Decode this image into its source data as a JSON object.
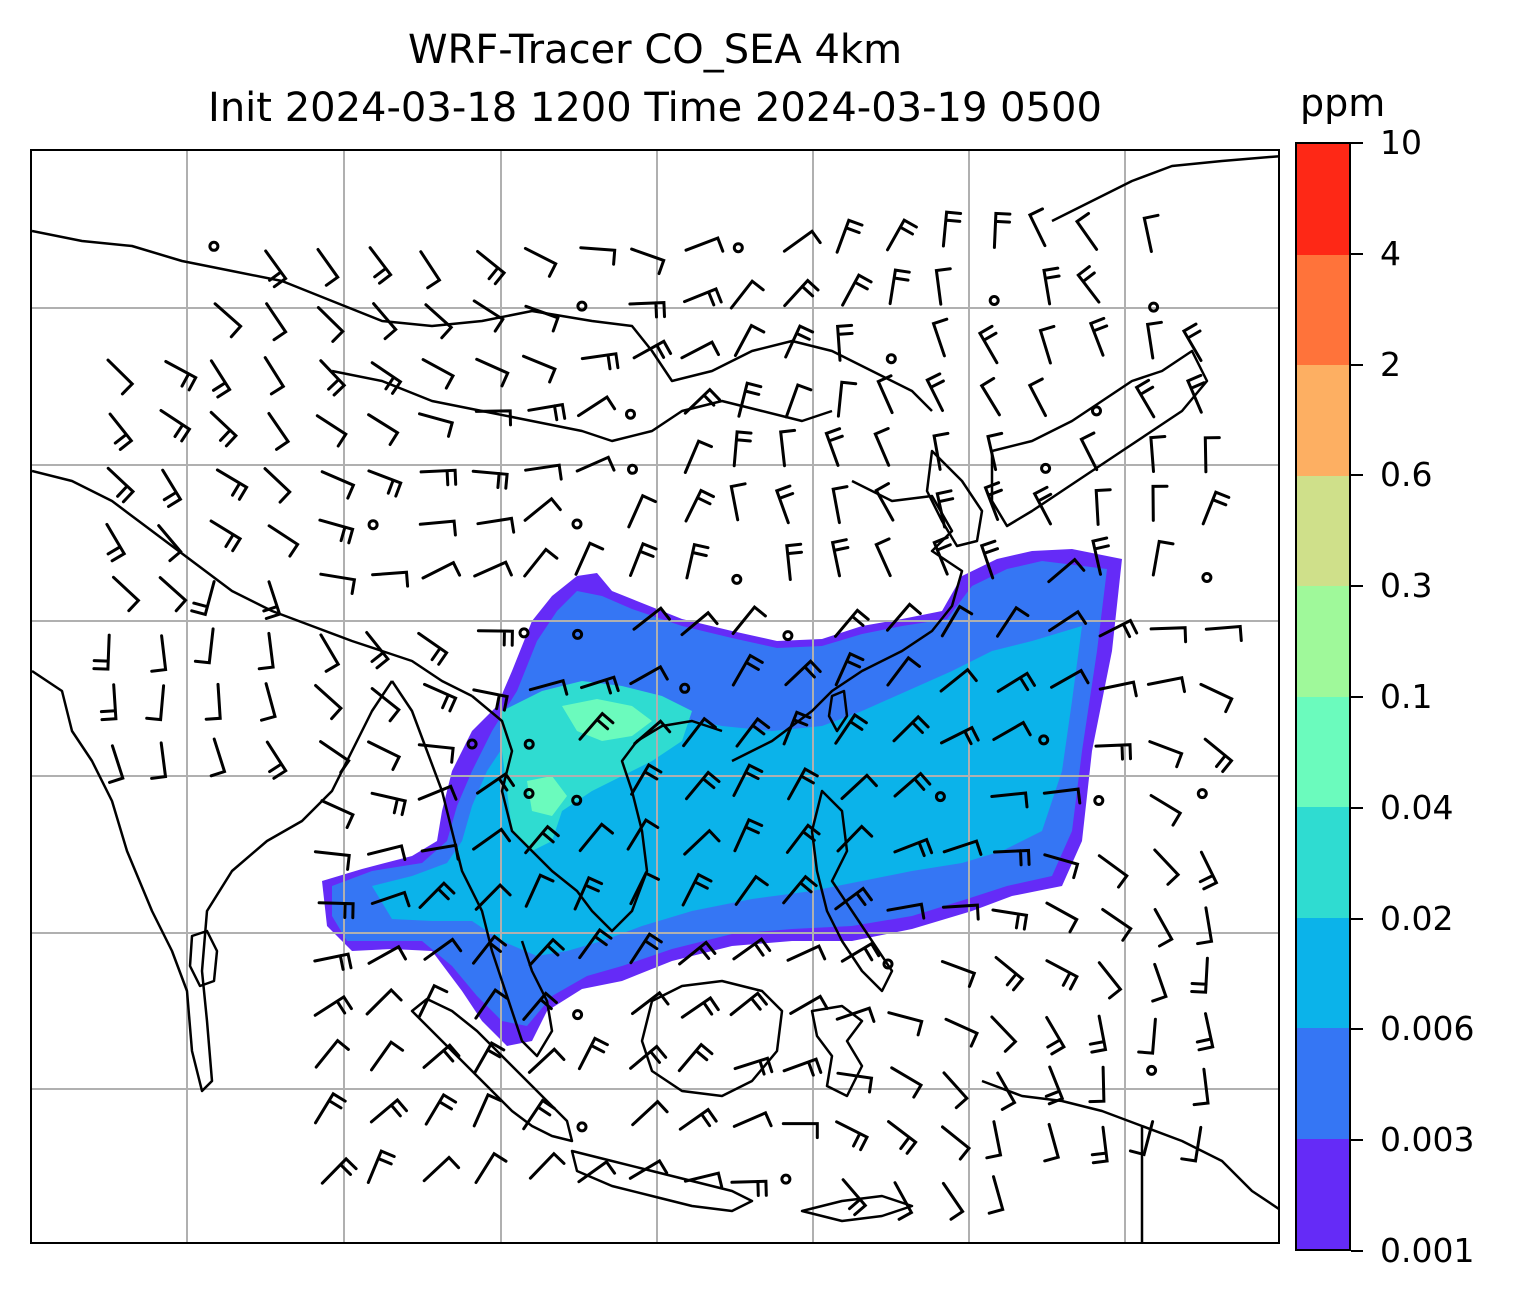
{
  "title": {
    "line1": "WRF-Tracer CO_SEA 4km",
    "line2": "Init 2024-03-18 1200 Time 2024-03-19 0500"
  },
  "colorbar": {
    "unit": "ppm",
    "levels": [
      "0.001",
      "0.003",
      "0.006",
      "0.02",
      "0.04",
      "0.1",
      "0.3",
      "0.6",
      "2",
      "4",
      "10"
    ],
    "colors": [
      "#652bf7",
      "#3576f4",
      "#0bb3ea",
      "#2fdcd1",
      "#6bfbbd",
      "#9ff99a",
      "#cfe08a",
      "#fdaf62",
      "#ff733a",
      "#fe2816"
    ]
  },
  "map": {
    "projection_gridlines": "grey lon/lat grid",
    "gridline_color": "#b0b0b0",
    "coastline_color": "#000000",
    "plume_colors": [
      "#652bf7",
      "#3576f4",
      "#0bb3ea",
      "#2fdcd1",
      "#6bfbbd"
    ]
  },
  "icons": [
    "wind-barb-icon",
    "calm-circle-icon"
  ]
}
